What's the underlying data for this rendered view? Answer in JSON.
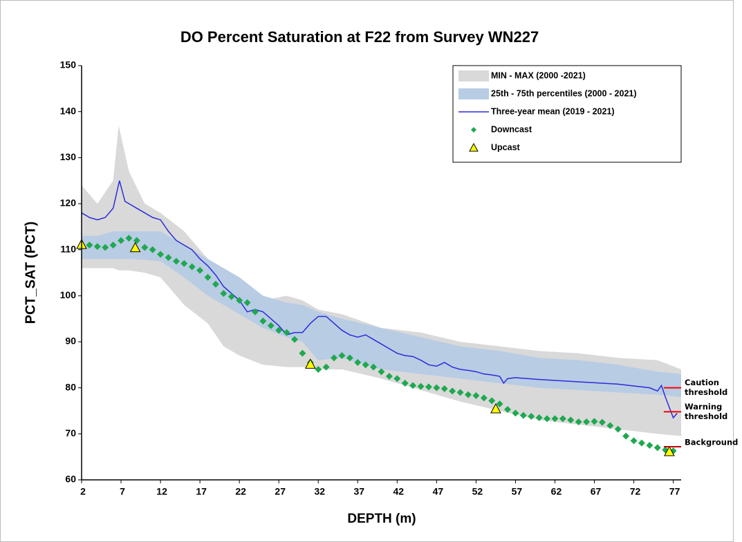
{
  "chart_data": {
    "type": "line",
    "title": "DO Percent Saturation at F22 from Survey WN227",
    "x_label": "DEPTH (m)",
    "y_label": "PCT_SAT (PCT)",
    "xlim": [
      2,
      78
    ],
    "ylim": [
      60,
      150
    ],
    "xticks": [
      2,
      7,
      12,
      17,
      22,
      27,
      32,
      37,
      42,
      47,
      52,
      57,
      62,
      67,
      72,
      77
    ],
    "yticks": [
      60,
      70,
      80,
      90,
      100,
      110,
      120,
      130,
      140,
      150
    ],
    "legend": "upper right",
    "series": [
      {
        "name": "MIN - MAX (2000 -2021)",
        "type": "band",
        "color": "#d9d9d9",
        "x": [
          2,
          4,
          6,
          6.7,
          8,
          10,
          12,
          15,
          18,
          20,
          22,
          25,
          28,
          30,
          32,
          35,
          40,
          45,
          50,
          55,
          60,
          65,
          70,
          75,
          78
        ],
        "low": [
          106,
          106,
          106,
          105.5,
          105.5,
          105,
          104,
          98,
          94,
          89,
          87,
          85,
          84.5,
          84.5,
          84,
          84,
          82,
          79.5,
          77,
          75,
          73,
          72,
          71,
          70,
          69.5
        ],
        "high": [
          124,
          120,
          125,
          137,
          127,
          120,
          118,
          114,
          108,
          105,
          103,
          99,
          100,
          99,
          97,
          96,
          93,
          92,
          90,
          89,
          88,
          87.5,
          86.5,
          86,
          84
        ]
      },
      {
        "name": "25th - 75th percentiles (2000 - 2021)",
        "type": "band",
        "color": "#b8cce4",
        "x": [
          2,
          4,
          6,
          6.7,
          8,
          10,
          12,
          15,
          18,
          20,
          22,
          25,
          28,
          30,
          32,
          35,
          40,
          45,
          50,
          55,
          60,
          65,
          70,
          75,
          78
        ],
        "low": [
          108,
          108,
          108,
          108,
          108,
          107.8,
          107.5,
          104,
          100,
          98,
          96,
          93,
          91,
          90,
          86,
          86.5,
          84,
          83,
          82,
          81,
          80,
          79.5,
          79,
          78.5,
          78
        ],
        "high": [
          113,
          113,
          114,
          114,
          114,
          114,
          114,
          111,
          108,
          106,
          104,
          100,
          98.5,
          98,
          96.5,
          95,
          93,
          91,
          89,
          88,
          86.5,
          86,
          85,
          83.5,
          83
        ]
      },
      {
        "name": "Three-year mean (2019 - 2021)",
        "type": "line",
        "color": "#2b2bd9",
        "x": [
          2,
          3,
          4,
          5,
          6,
          6.8,
          7.5,
          9,
          10,
          11,
          12,
          13,
          14,
          15,
          16,
          17,
          18,
          19,
          20,
          21,
          22,
          23,
          24,
          25,
          26,
          27,
          28,
          29,
          30,
          31,
          32,
          33,
          34,
          35,
          36,
          37,
          38,
          39,
          40,
          41,
          42,
          43,
          44,
          45,
          46,
          47,
          48,
          49,
          50,
          51,
          52,
          53,
          54,
          55,
          55.5,
          56,
          57,
          60,
          65,
          70,
          74,
          75,
          75.5,
          76,
          77,
          77.5
        ],
        "values": [
          118,
          117,
          116.5,
          117,
          119,
          125,
          120.5,
          119,
          118,
          117,
          116.5,
          114,
          112,
          111,
          110,
          108,
          106.5,
          104.5,
          102,
          100.5,
          99,
          96.5,
          97,
          96.5,
          95,
          93.5,
          91.5,
          92,
          92,
          94,
          95.5,
          95.5,
          94,
          92.5,
          91.5,
          91,
          91.5,
          90.5,
          89.5,
          88.5,
          87.5,
          87,
          86.8,
          86,
          85,
          84.7,
          85.5,
          84.5,
          84,
          83.8,
          83.5,
          83,
          82.8,
          82.5,
          81,
          82,
          82.2,
          81.8,
          81.3,
          80.8,
          80,
          79.3,
          80.5,
          78,
          73.5,
          74.5
        ]
      },
      {
        "name": "Downcast",
        "type": "scatter",
        "marker": "diamond",
        "color": "#1fa84f",
        "x": [
          2,
          3,
          4,
          5,
          6,
          7,
          8,
          9,
          10,
          11,
          12,
          13,
          14,
          15,
          16,
          17,
          18,
          19,
          20,
          21,
          22,
          23,
          24,
          25,
          26,
          27,
          28,
          29,
          30,
          31,
          32,
          33,
          34,
          35,
          36,
          37,
          38,
          39,
          40,
          41,
          42,
          43,
          44,
          45,
          46,
          47,
          48,
          49,
          50,
          51,
          52,
          53,
          54,
          55,
          56,
          57,
          58,
          59,
          60,
          61,
          62,
          63,
          64,
          65,
          66,
          67,
          68,
          69,
          70,
          71,
          72,
          73,
          74,
          75,
          76,
          77
        ],
        "values": [
          111,
          111,
          110.7,
          110.5,
          111,
          112,
          112.5,
          112,
          110.5,
          110,
          109,
          108.3,
          107.5,
          107,
          106.3,
          105.5,
          104,
          102.5,
          100.5,
          99.8,
          99,
          98.5,
          96.5,
          94.5,
          93.5,
          92.5,
          92,
          90.5,
          87.5,
          85.5,
          84,
          84.5,
          86.5,
          87,
          86.5,
          85.5,
          85,
          84.5,
          83.5,
          82.5,
          82,
          81,
          80.5,
          80.3,
          80.2,
          80,
          79.8,
          79.3,
          79,
          78.5,
          78.3,
          77.8,
          77.2,
          76.5,
          75.3,
          74.5,
          74,
          73.8,
          73.5,
          73.3,
          73.3,
          73.3,
          73,
          72.6,
          72.6,
          72.7,
          72.5,
          71.8,
          71,
          69.5,
          68.5,
          68,
          67.5,
          67,
          66.5,
          66.3
        ]
      },
      {
        "name": "Upcast",
        "type": "scatter",
        "marker": "triangle",
        "color": "#ffff00",
        "x": [
          2,
          8.8,
          31,
          54.5,
          76.5
        ],
        "values": [
          111,
          110.3,
          85,
          75.3,
          66
        ]
      }
    ],
    "thresholds": [
      {
        "label": [
          "Caution",
          "threshold"
        ],
        "value": 80,
        "color": "#ff0000"
      },
      {
        "label": [
          "Warning",
          "threshold"
        ],
        "value": 74.8,
        "color": "#ff0000"
      },
      {
        "label": [
          "Background"
        ],
        "value": 67.2,
        "color": "#c00000"
      }
    ]
  }
}
